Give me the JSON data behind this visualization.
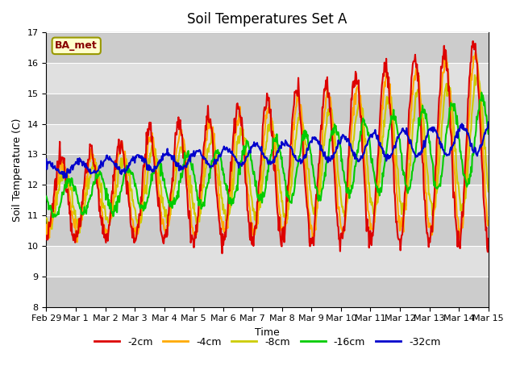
{
  "title": "Soil Temperatures Set A",
  "xlabel": "Time",
  "ylabel": "Soil Temperature (C)",
  "ylim": [
    8.0,
    17.0
  ],
  "yticks": [
    8.0,
    9.0,
    10.0,
    11.0,
    12.0,
    13.0,
    14.0,
    15.0,
    16.0,
    17.0
  ],
  "xtick_labels": [
    "Feb 29",
    "Mar 1",
    "Mar 2",
    "Mar 3",
    "Mar 4",
    "Mar 5",
    "Mar 6",
    "Mar 7",
    "Mar 8",
    "Mar 9",
    "Mar 10",
    "Mar 11",
    "Mar 12",
    "Mar 13",
    "Mar 14",
    "Mar 15"
  ],
  "line_colors": {
    "-2cm": "#dd0000",
    "-4cm": "#ffaa00",
    "-8cm": "#cccc00",
    "-16cm": "#00cc00",
    "-32cm": "#0000cc"
  },
  "station_label": "BA_met",
  "station_label_color": "#880000",
  "station_box_facecolor": "#ffffcc",
  "station_box_edgecolor": "#999900",
  "plot_bg_color": "#e0e0e0",
  "band_dark": "#cccccc",
  "band_light": "#e0e0e0",
  "line_width": 1.5,
  "figsize": [
    6.4,
    4.8
  ],
  "dpi": 100,
  "n_days": 15,
  "spd": 48
}
